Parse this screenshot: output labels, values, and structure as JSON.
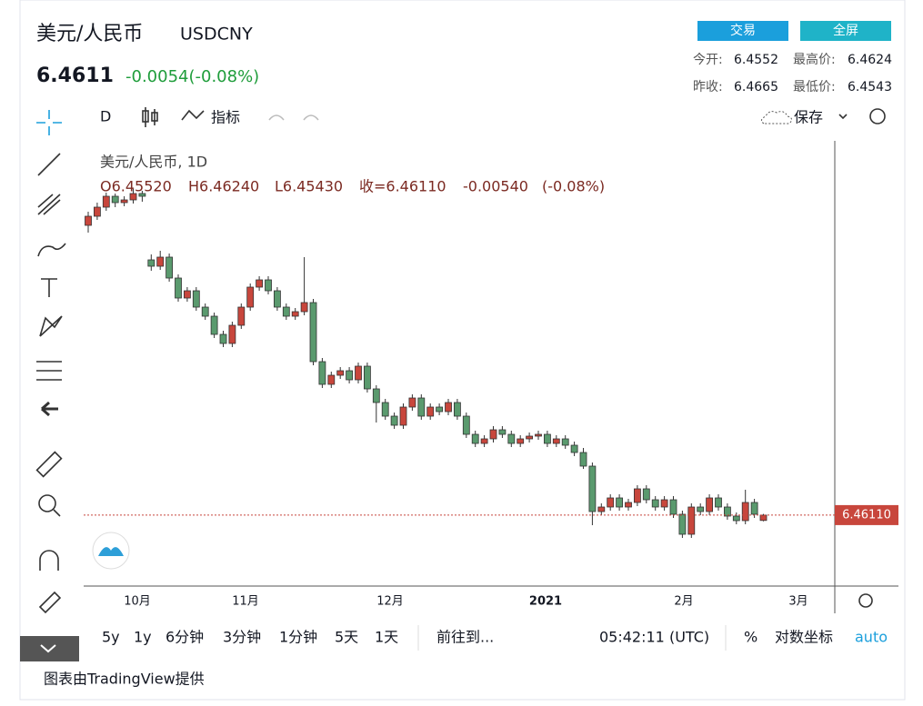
{
  "header": {
    "title": "美元/人民币",
    "symbol": "USDCNY",
    "price": "6.4611",
    "change": "-0.0054(-0.08%)",
    "buttons": [
      "交易",
      "全屏"
    ],
    "stats": [
      [
        "今开:",
        "6.4552",
        "最高价:",
        "6.4624"
      ],
      [
        "昨收:",
        "6.4665",
        "最低价:",
        "6.4543"
      ]
    ]
  },
  "toolbar": {
    "interval": "D",
    "indicators": "指标",
    "save": "保存"
  },
  "chart_data": {
    "type": "candlestick",
    "legend": "美元/人民币, 1D",
    "ohlc_text": [
      "O6.45520",
      "H6.46240",
      "L6.45430",
      "收=6.46110",
      "-0.00540",
      "(-0.08%)"
    ],
    "up_color": "#c8463c",
    "down_color": "#5a9a6e",
    "ylim": [
      6.383,
      6.873
    ],
    "last_price": "6.46110",
    "last_value": 6.4611,
    "x_labels": [
      "10月",
      "11月",
      "12月",
      "2021",
      "2月",
      "3月"
    ],
    "candles": [
      [
        6.78,
        6.795,
        6.772,
        6.79
      ],
      [
        6.79,
        6.805,
        6.786,
        6.8
      ],
      [
        6.8,
        6.816,
        6.796,
        6.812
      ],
      [
        6.812,
        6.815,
        6.8,
        6.805
      ],
      [
        6.805,
        6.812,
        6.801,
        6.808
      ],
      [
        6.808,
        6.82,
        6.804,
        6.815
      ],
      [
        6.815,
        6.818,
        6.806,
        6.812
      ],
      [
        6.742,
        6.748,
        6.73,
        6.735
      ],
      [
        6.735,
        6.752,
        6.731,
        6.745
      ],
      [
        6.745,
        6.749,
        6.718,
        6.722
      ],
      [
        6.722,
        6.726,
        6.696,
        6.7
      ],
      [
        6.7,
        6.712,
        6.696,
        6.708
      ],
      [
        6.708,
        6.712,
        6.686,
        6.69
      ],
      [
        6.69,
        6.694,
        6.676,
        6.68
      ],
      [
        6.68,
        6.684,
        6.656,
        6.66
      ],
      [
        6.66,
        6.664,
        6.646,
        6.65
      ],
      [
        6.65,
        6.674,
        6.646,
        6.67
      ],
      [
        6.67,
        6.694,
        6.666,
        6.69
      ],
      [
        6.69,
        6.716,
        6.686,
        6.712
      ],
      [
        6.712,
        6.724,
        6.708,
        6.72
      ],
      [
        6.72,
        6.724,
        6.704,
        6.708
      ],
      [
        6.708,
        6.712,
        6.686,
        6.69
      ],
      [
        6.69,
        6.694,
        6.676,
        6.68
      ],
      [
        6.68,
        6.689,
        6.676,
        6.685
      ],
      [
        6.685,
        6.745,
        6.681,
        6.695
      ],
      [
        6.695,
        6.699,
        6.626,
        6.63
      ],
      [
        6.63,
        6.634,
        6.601,
        6.605
      ],
      [
        6.605,
        6.619,
        6.601,
        6.615
      ],
      [
        6.615,
        6.624,
        6.611,
        6.62
      ],
      [
        6.62,
        6.624,
        6.606,
        6.61
      ],
      [
        6.61,
        6.629,
        6.606,
        6.625
      ],
      [
        6.625,
        6.629,
        6.596,
        6.6
      ],
      [
        6.6,
        6.604,
        6.563,
        6.585
      ],
      [
        6.585,
        6.589,
        6.566,
        6.57
      ],
      [
        6.57,
        6.574,
        6.556,
        6.56
      ],
      [
        6.56,
        6.584,
        6.556,
        6.58
      ],
      [
        6.58,
        6.594,
        6.576,
        6.59
      ],
      [
        6.59,
        6.594,
        6.566,
        6.57
      ],
      [
        6.57,
        6.584,
        6.566,
        6.58
      ],
      [
        6.58,
        6.584,
        6.571,
        6.575
      ],
      [
        6.575,
        6.589,
        6.571,
        6.585
      ],
      [
        6.585,
        6.589,
        6.566,
        6.57
      ],
      [
        6.57,
        6.574,
        6.546,
        6.55
      ],
      [
        6.55,
        6.554,
        6.536,
        6.54
      ],
      [
        6.54,
        6.549,
        6.536,
        6.545
      ],
      [
        6.545,
        6.559,
        6.541,
        6.555
      ],
      [
        6.555,
        6.559,
        6.546,
        6.55
      ],
      [
        6.55,
        6.554,
        6.536,
        6.54
      ],
      [
        6.54,
        6.549,
        6.536,
        6.545
      ],
      [
        6.545,
        6.552,
        6.541,
        6.548
      ],
      [
        6.548,
        6.554,
        6.544,
        6.55
      ],
      [
        6.55,
        6.554,
        6.536,
        6.54
      ],
      [
        6.54,
        6.549,
        6.536,
        6.545
      ],
      [
        6.545,
        6.549,
        6.534,
        6.538
      ],
      [
        6.538,
        6.542,
        6.526,
        6.53
      ],
      [
        6.53,
        6.535,
        6.512,
        6.515
      ],
      [
        6.515,
        6.519,
        6.45,
        6.465
      ],
      [
        6.465,
        6.474,
        6.461,
        6.47
      ],
      [
        6.47,
        6.484,
        6.466,
        6.48
      ],
      [
        6.48,
        6.484,
        6.466,
        6.47
      ],
      [
        6.47,
        6.479,
        6.466,
        6.475
      ],
      [
        6.475,
        6.494,
        6.471,
        6.49
      ],
      [
        6.49,
        6.494,
        6.474,
        6.478
      ],
      [
        6.478,
        6.482,
        6.466,
        6.47
      ],
      [
        6.47,
        6.482,
        6.466,
        6.478
      ],
      [
        6.478,
        6.482,
        6.458,
        6.462
      ],
      [
        6.462,
        6.466,
        6.436,
        6.44
      ],
      [
        6.44,
        6.474,
        6.436,
        6.47
      ],
      [
        6.47,
        6.474,
        6.461,
        6.465
      ],
      [
        6.465,
        6.484,
        6.461,
        6.48
      ],
      [
        6.48,
        6.484,
        6.466,
        6.47
      ],
      [
        6.47,
        6.474,
        6.456,
        6.46
      ],
      [
        6.46,
        6.464,
        6.451,
        6.455
      ],
      [
        6.455,
        6.489,
        6.451,
        6.475
      ],
      [
        6.475,
        6.479,
        6.458,
        6.462
      ],
      [
        6.4552,
        6.4624,
        6.4543,
        6.4611
      ]
    ]
  },
  "bottom_bar": {
    "ranges": [
      "5y",
      "1y",
      "6分钟",
      "3分钟",
      "1分钟",
      "5天",
      "1天"
    ],
    "goto": "前往到...",
    "time": "05:42:11 (UTC)",
    "percent": "%",
    "log": "对数坐标",
    "auto": "auto"
  },
  "footer": "图表由TradingView提供"
}
